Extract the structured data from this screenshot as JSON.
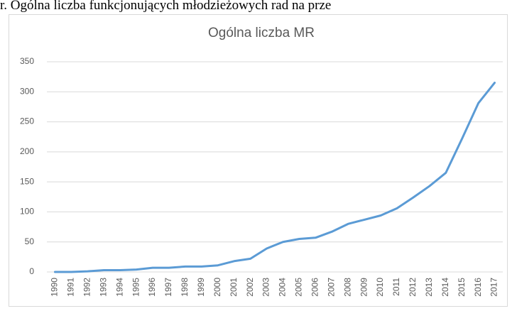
{
  "caption": "r. Ogólna liczba funkcjonujących młodzieżowych rad na prze",
  "chart_data": {
    "type": "line",
    "title": "Ogólna liczba MR",
    "categories": [
      "1990",
      "1991",
      "1992",
      "1993",
      "1994",
      "1995",
      "1996",
      "1997",
      "1998",
      "1999",
      "2000",
      "2001",
      "2002",
      "2003",
      "2004",
      "2005",
      "2006",
      "2007",
      "2008",
      "2009",
      "2010",
      "2011",
      "2012",
      "2013",
      "2014",
      "2015",
      "2016",
      "2017"
    ],
    "values": [
      0,
      0,
      1,
      3,
      3,
      4,
      7,
      7,
      9,
      9,
      11,
      18,
      22,
      39,
      50,
      55,
      57,
      67,
      80,
      87,
      94,
      106,
      124,
      143,
      165,
      222,
      281,
      315
    ],
    "color": "#5b9bd5",
    "ylim": [
      0,
      350
    ],
    "yticks": [
      0,
      50,
      100,
      150,
      200,
      250,
      300,
      350
    ],
    "grid": true
  }
}
